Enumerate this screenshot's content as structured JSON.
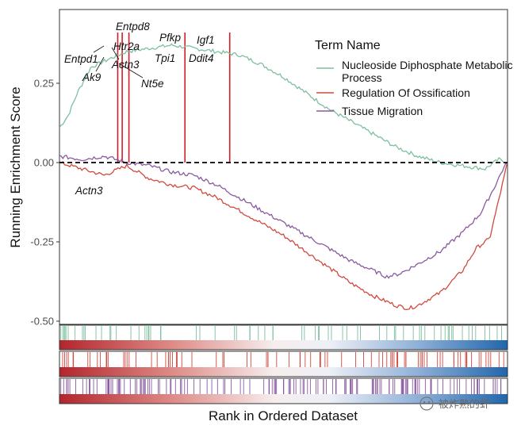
{
  "chart_data": {
    "type": "line",
    "title": "",
    "xlabel": "Rank in Ordered Dataset",
    "ylabel": "Running Enrichment Score",
    "ylim": [
      -0.5,
      0.5
    ],
    "yticks": [
      0.25,
      0.0,
      -0.25,
      -0.5
    ],
    "ytick_labels": [
      "0.25",
      "0.00",
      "-0.25",
      "-0.50"
    ],
    "legend": {
      "title": "Term Name",
      "position": "top-right",
      "entries": [
        {
          "label_line1": "Nucleoside Diphosphate Metabolic",
          "label_line2": "Process",
          "color": "#7dbf9e"
        },
        {
          "label_line1": "Regulation Of Ossification",
          "color": "#d1493f"
        },
        {
          "label_line1": "Tissue Migration",
          "color": "#8a5aa0"
        }
      ]
    },
    "series": [
      {
        "name": "Nucleoside Diphosphate Metabolic Process",
        "color": "#7dbf9e",
        "points": [
          [
            0,
            0.11
          ],
          [
            0.02,
            0.15
          ],
          [
            0.04,
            0.22
          ],
          [
            0.07,
            0.3
          ],
          [
            0.1,
            0.32
          ],
          [
            0.15,
            0.35
          ],
          [
            0.2,
            0.36
          ],
          [
            0.25,
            0.37
          ],
          [
            0.3,
            0.36
          ],
          [
            0.35,
            0.35
          ],
          [
            0.4,
            0.34
          ],
          [
            0.45,
            0.31
          ],
          [
            0.5,
            0.27
          ],
          [
            0.55,
            0.22
          ],
          [
            0.6,
            0.17
          ],
          [
            0.65,
            0.13
          ],
          [
            0.7,
            0.09
          ],
          [
            0.75,
            0.05
          ],
          [
            0.8,
            0.02
          ],
          [
            0.85,
            0.0
          ],
          [
            0.9,
            -0.01
          ],
          [
            0.95,
            -0.02
          ],
          [
            0.98,
            0.01
          ],
          [
            1.0,
            0.0
          ]
        ]
      },
      {
        "name": "Regulation Of Ossification",
        "color": "#d1493f",
        "points": [
          [
            0,
            0.0
          ],
          [
            0.05,
            -0.02
          ],
          [
            0.1,
            -0.04
          ],
          [
            0.15,
            -0.01
          ],
          [
            0.2,
            -0.05
          ],
          [
            0.25,
            -0.07
          ],
          [
            0.3,
            -0.08
          ],
          [
            0.35,
            -0.11
          ],
          [
            0.4,
            -0.15
          ],
          [
            0.45,
            -0.19
          ],
          [
            0.5,
            -0.23
          ],
          [
            0.55,
            -0.28
          ],
          [
            0.6,
            -0.33
          ],
          [
            0.65,
            -0.38
          ],
          [
            0.7,
            -0.42
          ],
          [
            0.75,
            -0.45
          ],
          [
            0.78,
            -0.46
          ],
          [
            0.8,
            -0.45
          ],
          [
            0.85,
            -0.41
          ],
          [
            0.9,
            -0.34
          ],
          [
            0.93,
            -0.27
          ],
          [
            0.96,
            -0.24
          ],
          [
            0.98,
            -0.12
          ],
          [
            1.0,
            0.0
          ]
        ]
      },
      {
        "name": "Tissue Migration",
        "color": "#8a5aa0",
        "points": [
          [
            0,
            0.02
          ],
          [
            0.05,
            0.01
          ],
          [
            0.1,
            0.02
          ],
          [
            0.15,
            0.0
          ],
          [
            0.2,
            -0.01
          ],
          [
            0.25,
            -0.03
          ],
          [
            0.3,
            -0.04
          ],
          [
            0.35,
            -0.07
          ],
          [
            0.4,
            -0.11
          ],
          [
            0.45,
            -0.15
          ],
          [
            0.5,
            -0.19
          ],
          [
            0.55,
            -0.23
          ],
          [
            0.6,
            -0.27
          ],
          [
            0.65,
            -0.31
          ],
          [
            0.7,
            -0.34
          ],
          [
            0.73,
            -0.36
          ],
          [
            0.76,
            -0.35
          ],
          [
            0.8,
            -0.32
          ],
          [
            0.85,
            -0.28
          ],
          [
            0.9,
            -0.22
          ],
          [
            0.94,
            -0.16
          ],
          [
            0.97,
            -0.08
          ],
          [
            0.99,
            -0.02
          ],
          [
            1.0,
            0.0
          ]
        ]
      }
    ],
    "gene_labels": [
      {
        "text": "Entpd8"
      },
      {
        "text": "Htr2a"
      },
      {
        "text": "Pfkp"
      },
      {
        "text": "Igf1"
      },
      {
        "text": "Entpd1"
      },
      {
        "text": "Actn3"
      },
      {
        "text": "Tpi1"
      },
      {
        "text": "Ddit4"
      },
      {
        "text": "Ak9"
      },
      {
        "text": "Nt5e"
      },
      {
        "text": "Actn3"
      }
    ],
    "highlight_ranks": [
      0.13,
      0.14,
      0.155,
      0.28,
      0.38
    ],
    "rank_panels": [
      {
        "name": "Nucleoside Diphosphate Metabolic Process",
        "color": "#7dbf9e"
      },
      {
        "name": "Regulation Of Ossification",
        "color": "#d1493f"
      },
      {
        "name": "Tissue Migration",
        "color": "#8a5aa0"
      }
    ]
  },
  "watermark": {
    "text": "被炸熟的虾"
  }
}
